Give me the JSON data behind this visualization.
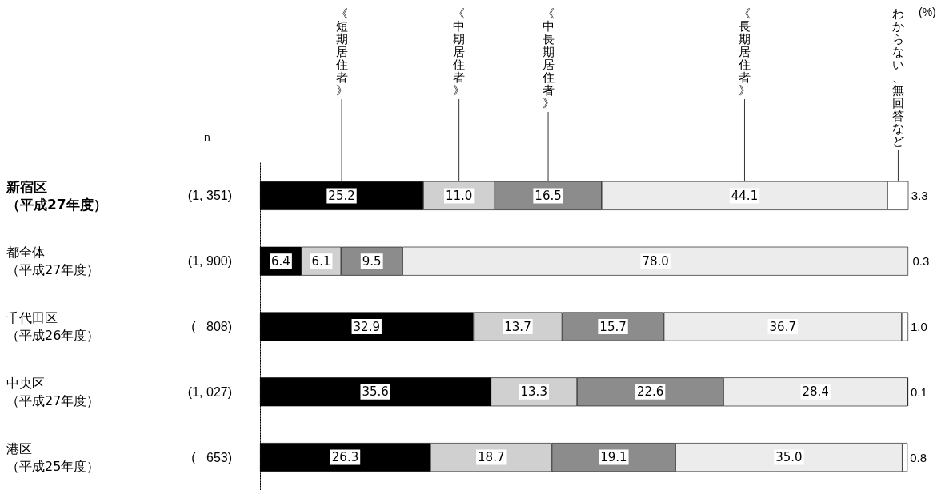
{
  "chart_data": {
    "type": "bar",
    "orientation": "horizontal",
    "stacked": true,
    "tick_labels": "y",
    "legend": "top",
    "categories": [
      "新宿区（平成27年度）",
      "都全体（平成27年度）",
      "千代田区（平成26年度）",
      "中央区（平成27年度）",
      "港区（平成25年度）"
    ],
    "xlim": [
      0,
      100
    ],
    "series": [
      {
        "name": "《短期居住者》",
        "color": "#000000",
        "values": [
          25.2,
          6.4,
          32.9,
          35.6,
          26.3
        ],
        "value_labels": [
          "25.2",
          "6.4",
          "32.9",
          "35.6",
          "26.3"
        ]
      },
      {
        "name": "《中期居住者》",
        "color": "#d0d0d0",
        "values": [
          11.0,
          6.1,
          13.7,
          13.3,
          18.7
        ],
        "value_labels": [
          "11.0",
          "6.1",
          "13.7",
          "13.3",
          "18.7"
        ]
      },
      {
        "name": "《中長期居住者》",
        "color": "#8c8c8c",
        "values": [
          16.5,
          9.5,
          15.7,
          22.6,
          19.1
        ],
        "value_labels": [
          "16.5",
          "9.5",
          "15.7",
          "22.6",
          "19.1"
        ]
      },
      {
        "name": "《長期居住者》",
        "color": "#ececec",
        "values": [
          44.1,
          78.0,
          36.7,
          28.4,
          35.0
        ],
        "value_labels": [
          "44.1",
          "78.0",
          "36.7",
          "28.4",
          "35.0"
        ]
      },
      {
        "name": "わからない、無回答など",
        "color": "#ffffff",
        "values": [
          3.3,
          0.3,
          1.0,
          0.1,
          0.8
        ],
        "value_labels": [
          "3.3",
          "0.3",
          "1.0",
          "0.1",
          "0.8"
        ]
      }
    ],
    "annotations": [
      "(%)",
      "n",
      "(1, 351)",
      "(1, 900)",
      "(   808)",
      "(1, 027)",
      "(   653)"
    ]
  }
}
